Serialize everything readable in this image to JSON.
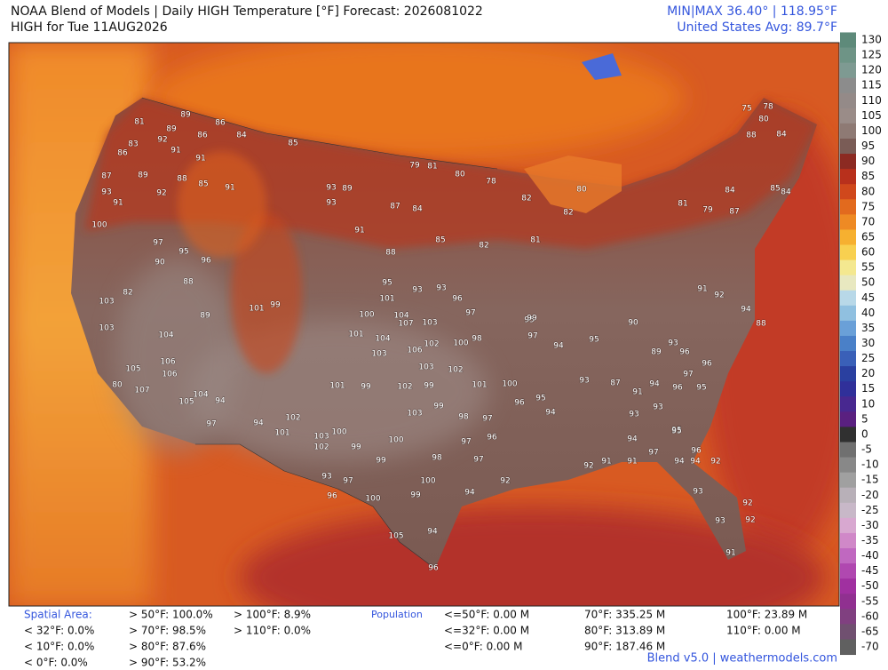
{
  "header": {
    "title": "NOAA Blend of Models | Daily HIGH Temperature [°F] Forecast: 2026081022",
    "subtitle": "HIGH for Tue 11AUG2026",
    "minmax": "MIN|MAX 36.40°  |  118.95°F",
    "average": "United States Avg: 89.7°F"
  },
  "colorbar": {
    "ticks": [
      130,
      125,
      120,
      115,
      110,
      105,
      100,
      95,
      90,
      85,
      80,
      75,
      70,
      65,
      60,
      55,
      50,
      45,
      40,
      35,
      30,
      25,
      20,
      15,
      10,
      5,
      0,
      -5,
      -10,
      -15,
      -20,
      -25,
      -30,
      -35,
      -40,
      -45,
      -50,
      -55,
      -60,
      -65,
      -70
    ],
    "colors": [
      "#5e8a7a",
      "#6e9486",
      "#7e9a92",
      "#8c8c8c",
      "#948a88",
      "#9a8c88",
      "#8e7a74",
      "#7a5c56",
      "#8c2a22",
      "#b8301c",
      "#d0481c",
      "#e26a1e",
      "#ee8a24",
      "#f6b030",
      "#f8d050",
      "#f4e890",
      "#e8e8c0",
      "#b8d8e8",
      "#90c0e0",
      "#6aa0d8",
      "#4a80c8",
      "#3a60b8",
      "#2a40a0",
      "#30309a",
      "#482890",
      "#5a2080",
      "#303030",
      "#707070",
      "#888888",
      "#a0a0a0",
      "#b8b0b8",
      "#c8b8c8",
      "#d8a8d0",
      "#d088c8",
      "#c068c0",
      "#b048b0",
      "#a030a0",
      "#903090",
      "#804080",
      "#705070",
      "#606060"
    ]
  },
  "stations": [
    81,
    89,
    86,
    89,
    92,
    86,
    84,
    85,
    83,
    91,
    91,
    86,
    87,
    89,
    88,
    85,
    91,
    93,
    91,
    92,
    100,
    97,
    95,
    90,
    96,
    88,
    82,
    103,
    103,
    89,
    101,
    99,
    104,
    106,
    105,
    106,
    107,
    80,
    104,
    105,
    94,
    97,
    94,
    101,
    102,
    103,
    102,
    100,
    99,
    99,
    100,
    93,
    97,
    96,
    100,
    99,
    105,
    94,
    96,
    100,
    98,
    97,
    96,
    97,
    94,
    92,
    92,
    91,
    91,
    94,
    93,
    92,
    93,
    92,
    91,
    97,
    94,
    95,
    88,
    94,
    92,
    91,
    81,
    79,
    84,
    87,
    88,
    80,
    75,
    78,
    84,
    85,
    84,
    79,
    81,
    80,
    78,
    82,
    80,
    82,
    81,
    82,
    85,
    88,
    91,
    93,
    93,
    89,
    87,
    84,
    93,
    95,
    101,
    100,
    104,
    107,
    103,
    102,
    106,
    103,
    101,
    104,
    100,
    98,
    97,
    96,
    93,
    103,
    102,
    101,
    100,
    99,
    102,
    99,
    101,
    103,
    99,
    98,
    97,
    96,
    94,
    95,
    93,
    87,
    91,
    94,
    96,
    95,
    93,
    93,
    95,
    96,
    94,
    92,
    95,
    99,
    97,
    94,
    95,
    90,
    89,
    93,
    96,
    96,
    97
  ],
  "footer": {
    "area_label": "Spatial Area:",
    "area_stats": [
      [
        "< 32°F: 0.0%",
        "< 10°F: 0.0%",
        "< 0°F: 0.0%"
      ],
      [
        "> 50°F: 100.0%",
        "> 70°F: 98.5%",
        "> 80°F: 87.6%",
        "> 90°F: 53.2%"
      ],
      [
        "> 100°F: 8.9%",
        "> 110°F: 0.0%"
      ]
    ],
    "population_label": "Population",
    "population_stats": [
      [
        "<=50°F: 0.00 M",
        "<=32°F: 0.00 M",
        "<=0°F: 0.00 M"
      ],
      [
        "70°F: 335.25 M",
        "80°F: 313.89 M",
        "90°F: 187.46 M"
      ],
      [
        "100°F: 23.89 M",
        "110°F: 0.00 M"
      ]
    ],
    "credit": "Blend v5.0 | weathermodels.com"
  }
}
